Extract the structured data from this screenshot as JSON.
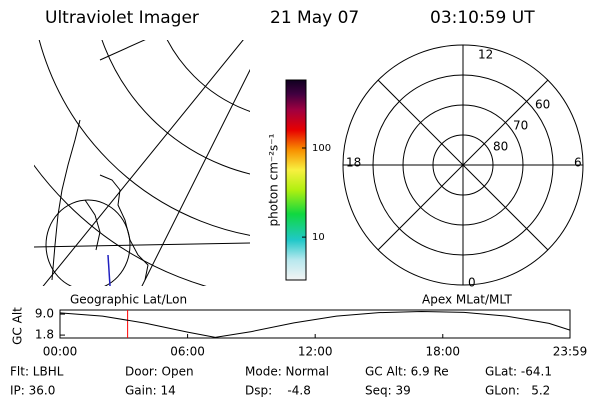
{
  "header": {
    "title": "Ultraviolet Imager",
    "date": "21 May 07",
    "time": "03:10:59 UT"
  },
  "colorbar": {
    "label": "photon cm⁻²s⁻¹",
    "log": true,
    "range": [
      3.3,
      580
    ],
    "ticks": [
      {
        "value": 100,
        "label": "100"
      },
      {
        "value": 10,
        "label": "10"
      }
    ]
  },
  "polar": {
    "mlt_labels": [
      "12",
      "18",
      "6",
      "0"
    ],
    "lat_labels": [
      "80",
      "70",
      "60"
    ]
  },
  "panel_labels": {
    "left": "Geographic Lat/Lon",
    "right": "Apex MLat/MLT"
  },
  "chart_data": {
    "type": "line",
    "ylabel": "GC Alt",
    "x": [
      0,
      2,
      4,
      6,
      7.3,
      9,
      11,
      13,
      15,
      17,
      19,
      21,
      23,
      23.983
    ],
    "series": [
      {
        "color": "#000000",
        "values": [
          9.4,
          8.3,
          5.9,
          2.8,
          1.0,
          3.0,
          6.0,
          8.3,
          9.5,
          9.9,
          9.6,
          8.3,
          5.8,
          3.5
        ]
      }
    ],
    "xlim": [
      0,
      23.983
    ],
    "xticks": [
      {
        "value": 0,
        "label": "00:00"
      },
      {
        "value": 6,
        "label": "06:00"
      },
      {
        "value": 12,
        "label": "12:00"
      },
      {
        "value": 18,
        "label": "18:00"
      },
      {
        "value": 23.983,
        "label": "23:59"
      }
    ],
    "ylim": [
      0.8,
      10.4
    ],
    "yticks": [
      {
        "value": 9,
        "label": "9.0"
      },
      {
        "value": 1.8,
        "label": "1.8"
      }
    ],
    "marker_x": 3.18,
    "marker_color": "#ff0000"
  },
  "footer": {
    "rows": [
      [
        "Flt: LBHL",
        "Door: Open",
        "Mode: Normal",
        "GC Alt: 6.9 Re",
        "GLat: -64.1"
      ],
      [
        "IP: 36.0",
        "Gain: 14",
        "Dsp:    -4.8",
        "Seq: 39",
        "GLon:   5.2"
      ]
    ]
  }
}
